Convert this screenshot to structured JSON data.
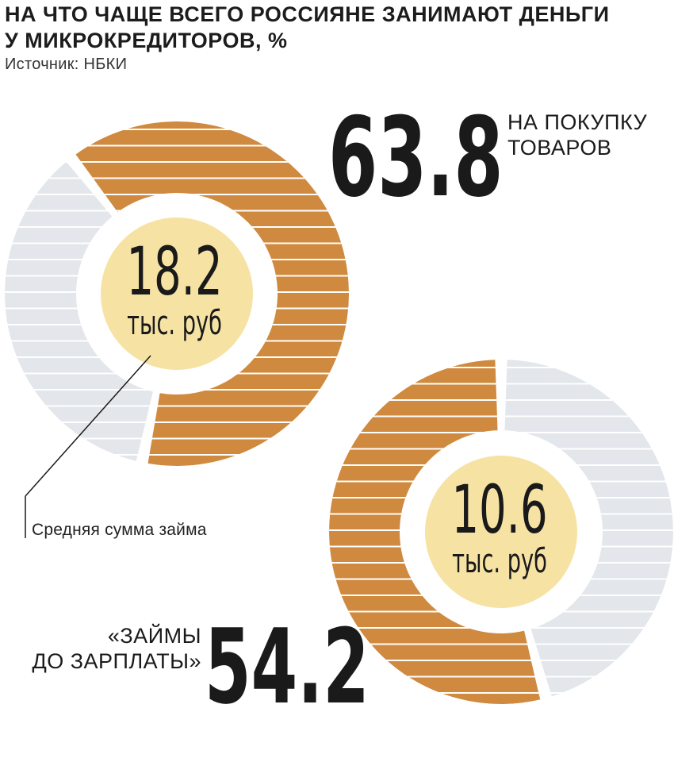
{
  "title_lines": [
    "НА ЧТО ЧАЩЕ ВСЕГО РОССИЯНЕ ЗАНИМАЮТ ДЕНЬГИ",
    "У МИКРОКРЕДИТОРОВ, %"
  ],
  "source": "Источник: НБКИ",
  "colors": {
    "accent": "#cf8a3f",
    "rest": "#e3e6ea",
    "center": "#f6e3a4",
    "stripe": "#ffffff"
  },
  "chart_data": [
    {
      "type": "donut",
      "value": 63.8,
      "value_label": "63.8",
      "label_lines": [
        "НА ПОКУПКУ",
        "ТОВАРОВ"
      ],
      "center_value": "18.2",
      "center_unit": "тыс. руб"
    },
    {
      "type": "donut",
      "value": 54.2,
      "value_label": "54.2",
      "label_lines": [
        "«ЗАЙМЫ",
        "ДО ЗАРПЛАТЫ»"
      ],
      "center_value": "10.6",
      "center_unit": "тыс. руб"
    }
  ],
  "annotation": "Средняя сумма займа"
}
